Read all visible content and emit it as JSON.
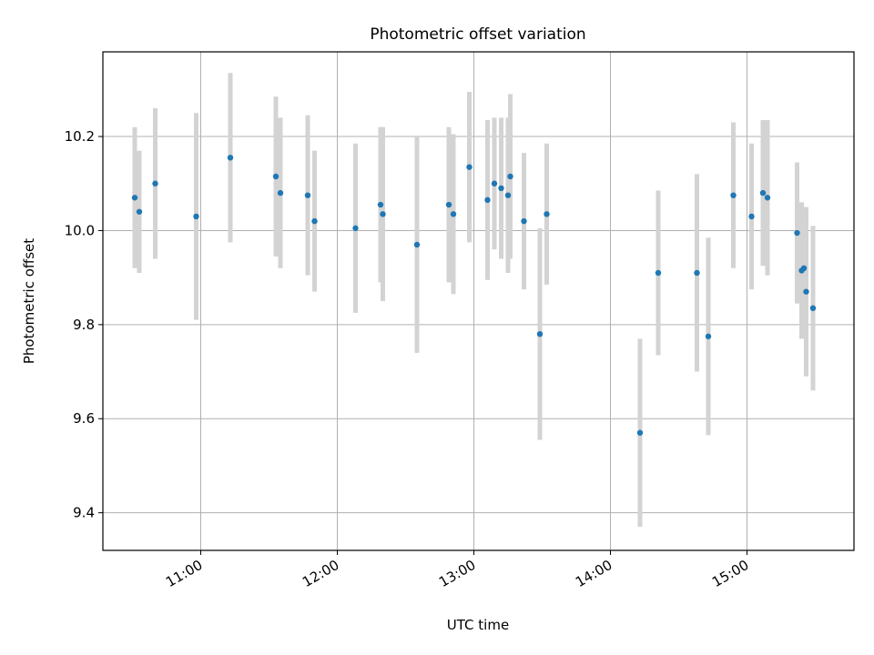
{
  "chart_data": {
    "type": "scatter",
    "title": "Photometric offset variation",
    "xlabel": "UTC time",
    "ylabel": "Photometric offset",
    "xlim": [
      "10:17",
      "15:47"
    ],
    "ylim": [
      9.32,
      10.38
    ],
    "x_ticks": [
      "11:00",
      "12:00",
      "13:00",
      "14:00",
      "15:00"
    ],
    "y_ticks": [
      9.4,
      9.6,
      9.8,
      10.0,
      10.2
    ],
    "grid": true,
    "colors": {
      "point": "#1f77b4",
      "errorbar": "#d3d3d3",
      "grid": "#b0b0b0"
    },
    "points": [
      {
        "x": "10:31",
        "y": 10.07,
        "err": 0.15
      },
      {
        "x": "10:33",
        "y": 10.04,
        "err": 0.13
      },
      {
        "x": "10:40",
        "y": 10.1,
        "err": 0.16
      },
      {
        "x": "10:58",
        "y": 10.03,
        "err": 0.22
      },
      {
        "x": "11:13",
        "y": 10.155,
        "err": 0.18
      },
      {
        "x": "11:33",
        "y": 10.115,
        "err": 0.17
      },
      {
        "x": "11:35",
        "y": 10.08,
        "err": 0.16
      },
      {
        "x": "11:47",
        "y": 10.075,
        "err": 0.17
      },
      {
        "x": "11:50",
        "y": 10.02,
        "err": 0.15
      },
      {
        "x": "12:08",
        "y": 10.005,
        "err": 0.18
      },
      {
        "x": "12:19",
        "y": 10.055,
        "err": 0.165
      },
      {
        "x": "12:20",
        "y": 10.035,
        "err": 0.185
      },
      {
        "x": "12:35",
        "y": 9.97,
        "err": 0.23
      },
      {
        "x": "12:49",
        "y": 10.055,
        "err": 0.165
      },
      {
        "x": "12:51",
        "y": 10.035,
        "err": 0.17
      },
      {
        "x": "12:58",
        "y": 10.135,
        "err": 0.16
      },
      {
        "x": "13:06",
        "y": 10.065,
        "err": 0.17
      },
      {
        "x": "13:09",
        "y": 10.1,
        "err": 0.14
      },
      {
        "x": "13:12",
        "y": 10.09,
        "err": 0.15
      },
      {
        "x": "13:15",
        "y": 10.075,
        "err": 0.165
      },
      {
        "x": "13:16",
        "y": 10.115,
        "err": 0.175
      },
      {
        "x": "13:22",
        "y": 10.02,
        "err": 0.145
      },
      {
        "x": "13:29",
        "y": 9.78,
        "err": 0.225
      },
      {
        "x": "13:32",
        "y": 10.035,
        "err": 0.15
      },
      {
        "x": "14:13",
        "y": 9.57,
        "err": 0.2
      },
      {
        "x": "14:21",
        "y": 9.91,
        "err": 0.175
      },
      {
        "x": "14:38",
        "y": 9.91,
        "err": 0.21
      },
      {
        "x": "14:43",
        "y": 9.775,
        "err": 0.21
      },
      {
        "x": "14:54",
        "y": 10.075,
        "err": 0.155
      },
      {
        "x": "15:02",
        "y": 10.03,
        "err": 0.155
      },
      {
        "x": "15:07",
        "y": 10.08,
        "err": 0.155
      },
      {
        "x": "15:09",
        "y": 10.07,
        "err": 0.165
      },
      {
        "x": "15:22",
        "y": 9.995,
        "err": 0.15
      },
      {
        "x": "15:24",
        "y": 9.915,
        "err": 0.145
      },
      {
        "x": "15:25",
        "y": 9.92,
        "err": 0.13
      },
      {
        "x": "15:26",
        "y": 9.87,
        "err": 0.18
      },
      {
        "x": "15:29",
        "y": 9.835,
        "err": 0.175
      }
    ]
  }
}
